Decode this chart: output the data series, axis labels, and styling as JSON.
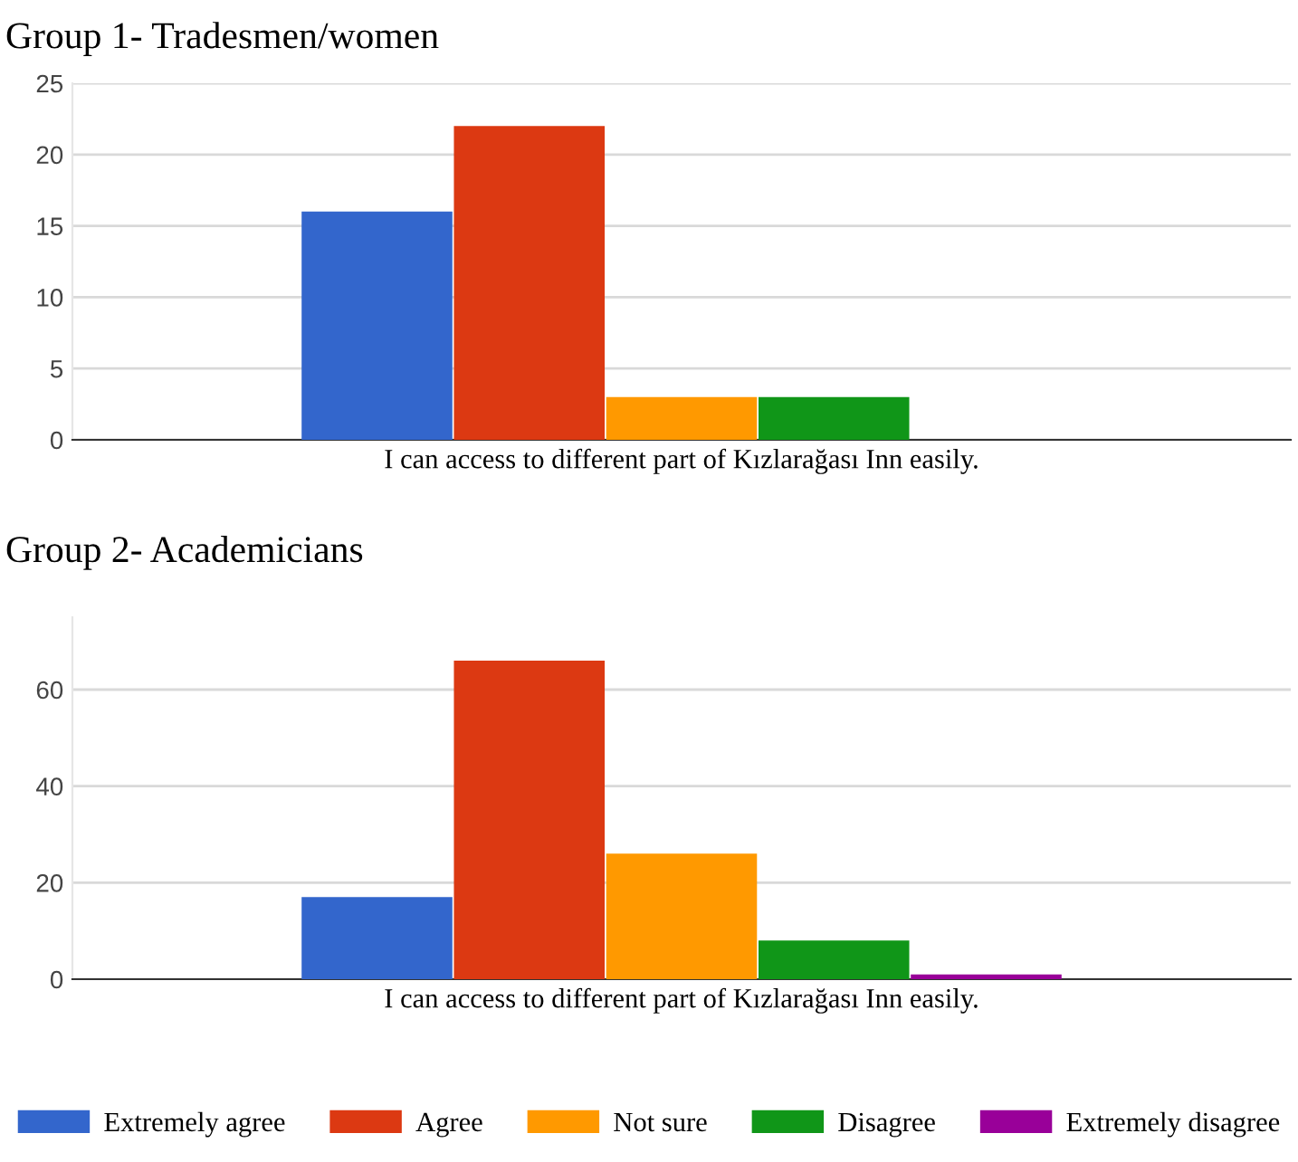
{
  "chart_data": [
    {
      "type": "bar",
      "title": "Group 1- Tradesmen/women",
      "categories": [
        "I can access to different part of Kızlarağası Inn easily."
      ],
      "series": [
        {
          "name": "Extremely agree",
          "color": "#3366cc",
          "values": [
            16
          ]
        },
        {
          "name": "Agree",
          "color": "#dc3912",
          "values": [
            22
          ]
        },
        {
          "name": "Not sure",
          "color": "#ff9900",
          "values": [
            3
          ]
        },
        {
          "name": "Disagree",
          "color": "#109618",
          "values": [
            3
          ]
        }
      ],
      "ylim": [
        0,
        25
      ],
      "yticks": [
        0,
        5,
        10,
        15,
        20,
        25
      ],
      "grid": "y",
      "legend": "bottom"
    },
    {
      "type": "bar",
      "title": "Group 2- Academicians",
      "categories": [
        "I can access to different part of Kızlarağası Inn easily."
      ],
      "series": [
        {
          "name": "Extremely agree",
          "color": "#3366cc",
          "values": [
            17
          ]
        },
        {
          "name": "Agree",
          "color": "#dc3912",
          "values": [
            66
          ]
        },
        {
          "name": "Not sure",
          "color": "#ff9900",
          "values": [
            26
          ]
        },
        {
          "name": "Disagree",
          "color": "#109618",
          "values": [
            8
          ]
        },
        {
          "name": "Extremely disagree",
          "color": "#990099",
          "values": [
            1
          ]
        }
      ],
      "ylim": [
        0,
        75
      ],
      "yticks": [
        0,
        20,
        40,
        60
      ],
      "grid": "y",
      "legend": "bottom"
    }
  ]
}
